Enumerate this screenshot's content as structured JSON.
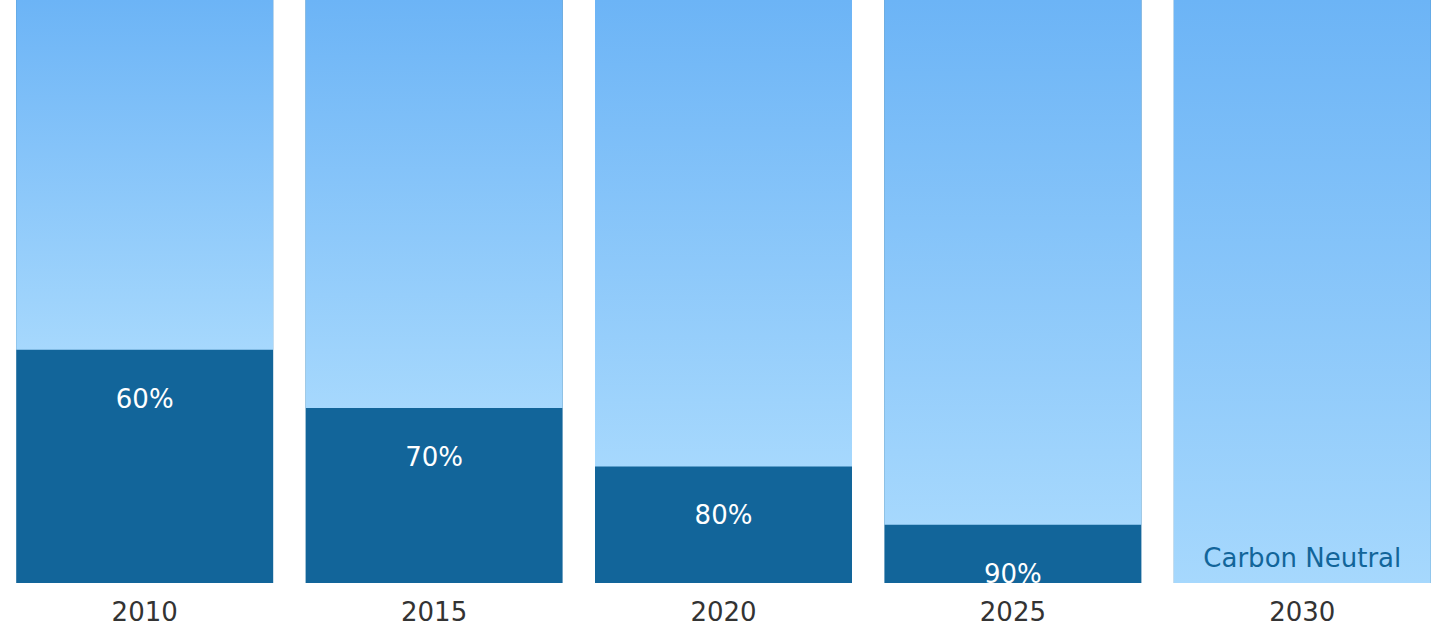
{
  "chart_data": {
    "type": "bar",
    "categories": [
      "2010",
      "2015",
      "2020",
      "2025",
      "2030"
    ],
    "values": [
      60,
      70,
      80,
      90,
      100
    ],
    "value_labels": [
      "60%",
      "70%",
      "80%",
      "90%",
      "Carbon Neutral"
    ],
    "data_labels": true,
    "color": "#6cb4f6",
    "ylim": [
      0,
      100
    ],
    "yticks": [
      0,
      100
    ],
    "grid": false,
    "tick_labels": "x"
  }
}
